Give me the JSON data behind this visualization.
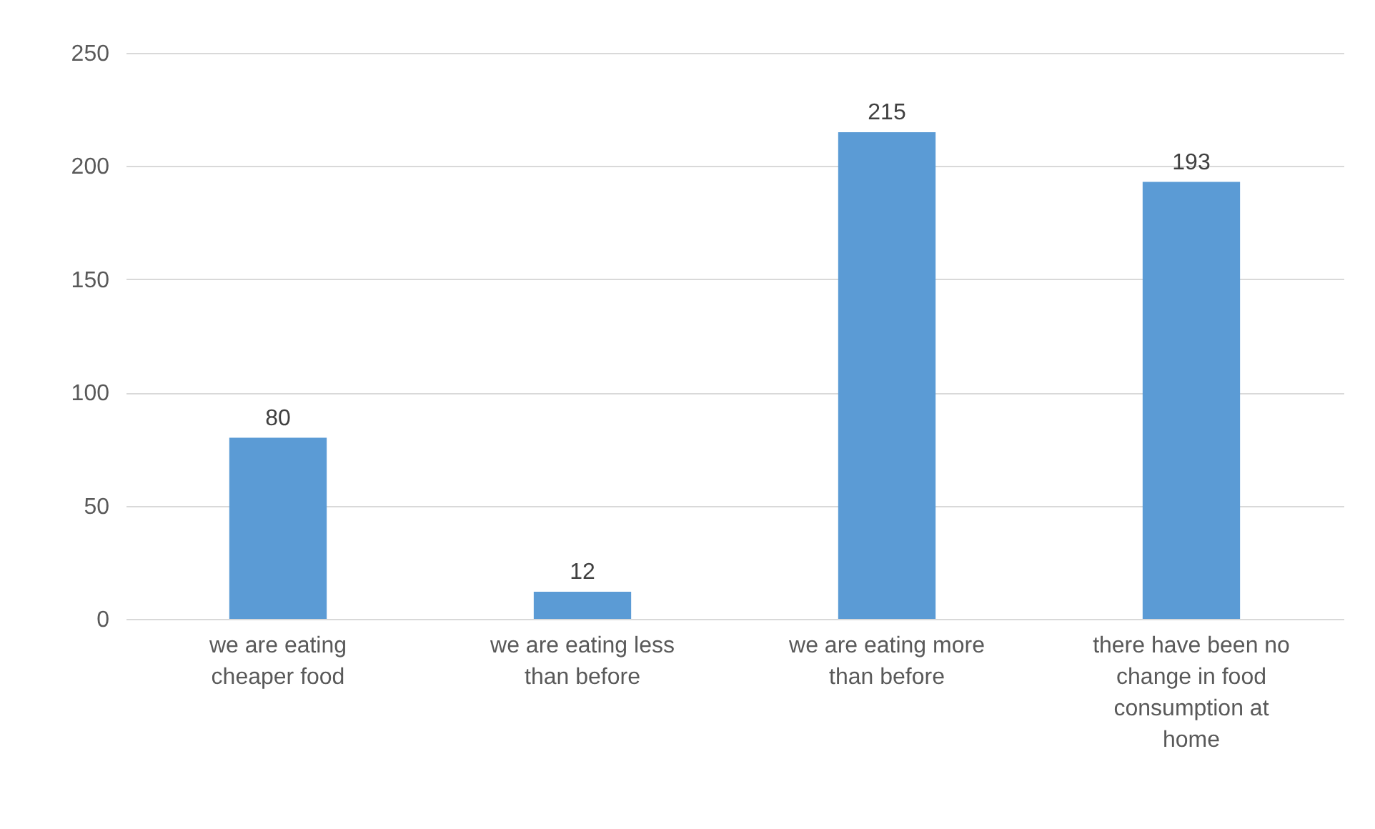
{
  "chart_data": {
    "type": "bar",
    "categories": [
      "we are eating cheaper food",
      "we are eating less than before",
      "we are eating more than before",
      "there have been no change in food consumption at home"
    ],
    "values": [
      80,
      12,
      215,
      193
    ],
    "color": "#5b9bd5",
    "ylim": [
      0,
      250
    ],
    "yticks": [
      0,
      50,
      100,
      150,
      200,
      250
    ],
    "grid": "y",
    "data_labels": true
  }
}
